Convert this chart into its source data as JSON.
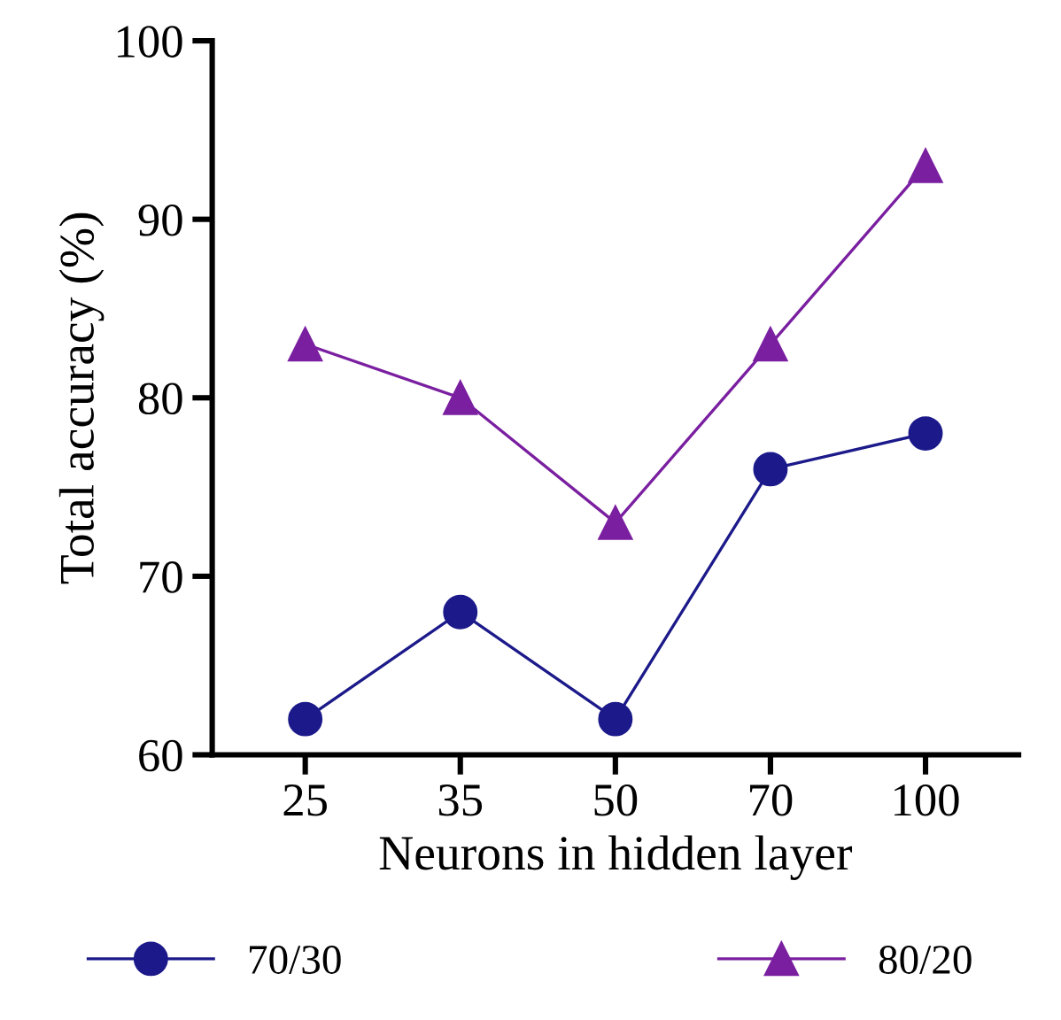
{
  "chart_data": {
    "type": "line",
    "xlabel": "Neurons in hidden layer",
    "ylabel": "Total accuracy (%)",
    "categories": [
      "25",
      "35",
      "50",
      "70",
      "100"
    ],
    "series": [
      {
        "name": "70/30",
        "color": "#1c1a8a",
        "marker": "circle",
        "values": [
          62,
          68,
          62,
          76,
          78
        ]
      },
      {
        "name": "80/20",
        "color": "#7a1fa0",
        "marker": "triangle",
        "values": [
          83,
          80,
          73,
          83,
          93
        ]
      }
    ],
    "ylim": [
      60,
      100
    ],
    "yticks": [
      60,
      70,
      80,
      90,
      100
    ],
    "grid": false,
    "legend": "bottom",
    "line_style": "solid"
  }
}
